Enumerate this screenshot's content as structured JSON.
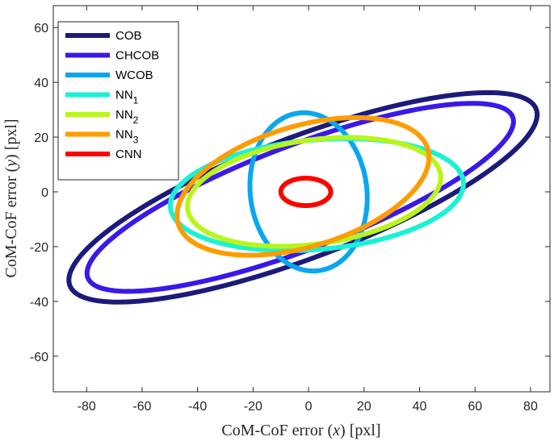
{
  "chart_data": {
    "type": "line",
    "title": "",
    "xlabel": "CoM-CoF error (x) [pxl]",
    "ylabel": "CoM-CoF error (y) [pxl]",
    "xlim": [
      -92,
      87
    ],
    "ylim": [
      -73,
      68
    ],
    "xticks": [
      -80,
      -60,
      -40,
      -20,
      0,
      20,
      40,
      60,
      80
    ],
    "yticks": [
      -60,
      -40,
      -20,
      0,
      20,
      40,
      60
    ],
    "grid": false,
    "legend_position": "top-left",
    "series": [
      {
        "name": "COB",
        "color": "#1c1a7a",
        "shape": "ellipse",
        "center": [
          -2,
          -2
        ],
        "semi_major": 90,
        "semi_minor": 22,
        "angle_deg": 21
      },
      {
        "name": "CHCOB",
        "color": "#3a19e8",
        "shape": "ellipse",
        "center": [
          -3,
          -2
        ],
        "semi_major": 82,
        "semi_minor": 19,
        "angle_deg": 21
      },
      {
        "name": "WCOB",
        "color": "#0aa6f0",
        "shape": "ellipse",
        "center": [
          0,
          0
        ],
        "semi_major": 29,
        "semi_minor": 21,
        "angle_deg": 97
      },
      {
        "name": "NN1",
        "color": "#1af2d4",
        "shape": "ellipse",
        "center": [
          3,
          -1
        ],
        "semi_major": 53,
        "semi_minor": 20,
        "angle_deg": 5
      },
      {
        "name": "NN2",
        "color": "#b9f51b",
        "shape": "ellipse",
        "center": [
          2,
          0
        ],
        "semi_major": 46,
        "semi_minor": 19,
        "angle_deg": 8
      },
      {
        "name": "NN3",
        "color": "#ff9c00",
        "shape": "ellipse",
        "center": [
          -2,
          2
        ],
        "semi_major": 47,
        "semi_minor": 22,
        "angle_deg": 17
      },
      {
        "name": "CNN",
        "color": "#ff0000",
        "shape": "ellipse",
        "center": [
          -1,
          0
        ],
        "semi_major": 9,
        "semi_minor": 5,
        "angle_deg": 0
      }
    ],
    "legend_labels": [
      {
        "base": "COB",
        "sub": ""
      },
      {
        "base": "CHCOB",
        "sub": ""
      },
      {
        "base": "WCOB",
        "sub": ""
      },
      {
        "base": "NN",
        "sub": "1"
      },
      {
        "base": "NN",
        "sub": "2"
      },
      {
        "base": "NN",
        "sub": "3"
      },
      {
        "base": "CNN",
        "sub": ""
      }
    ]
  }
}
